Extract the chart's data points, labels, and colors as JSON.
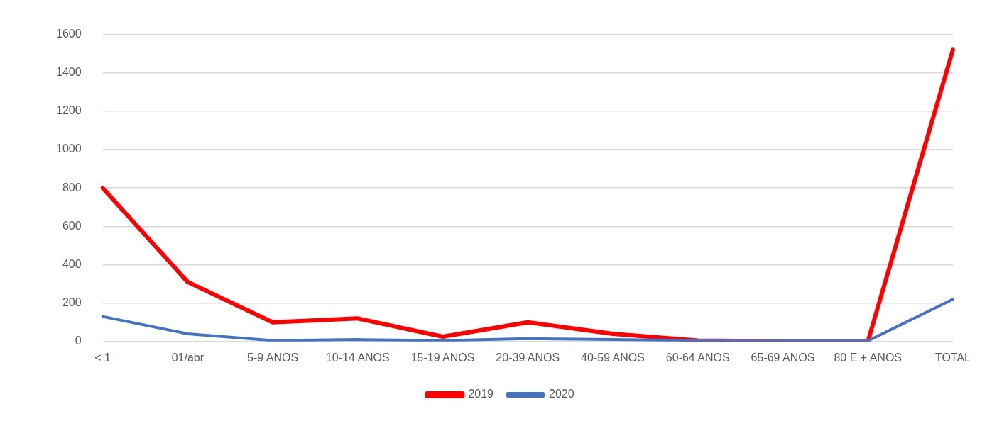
{
  "chart_data": {
    "type": "line",
    "categories": [
      "< 1",
      "01/abr",
      "5-9 ANOS",
      "10-14 ANOS",
      "15-19 ANOS",
      "20-39 ANOS",
      "40-59 ANOS",
      "60-64 ANOS",
      "65-69 ANOS",
      "80 E + ANOS",
      "TOTAL"
    ],
    "series": [
      {
        "name": "2019",
        "color": "#ff0000",
        "values": [
          800,
          310,
          100,
          120,
          25,
          100,
          40,
          5,
          0,
          0,
          1520
        ]
      },
      {
        "name": "2020",
        "color": "#4472c4",
        "values": [
          130,
          40,
          5,
          10,
          5,
          15,
          10,
          5,
          3,
          3,
          220
        ]
      }
    ],
    "ylim": [
      0,
      1600
    ],
    "yticks": [
      0,
      200,
      400,
      600,
      800,
      1000,
      1200,
      1400,
      1600
    ],
    "grid": "y",
    "legend": "bottom",
    "marker": "none",
    "line_style": "solid"
  }
}
